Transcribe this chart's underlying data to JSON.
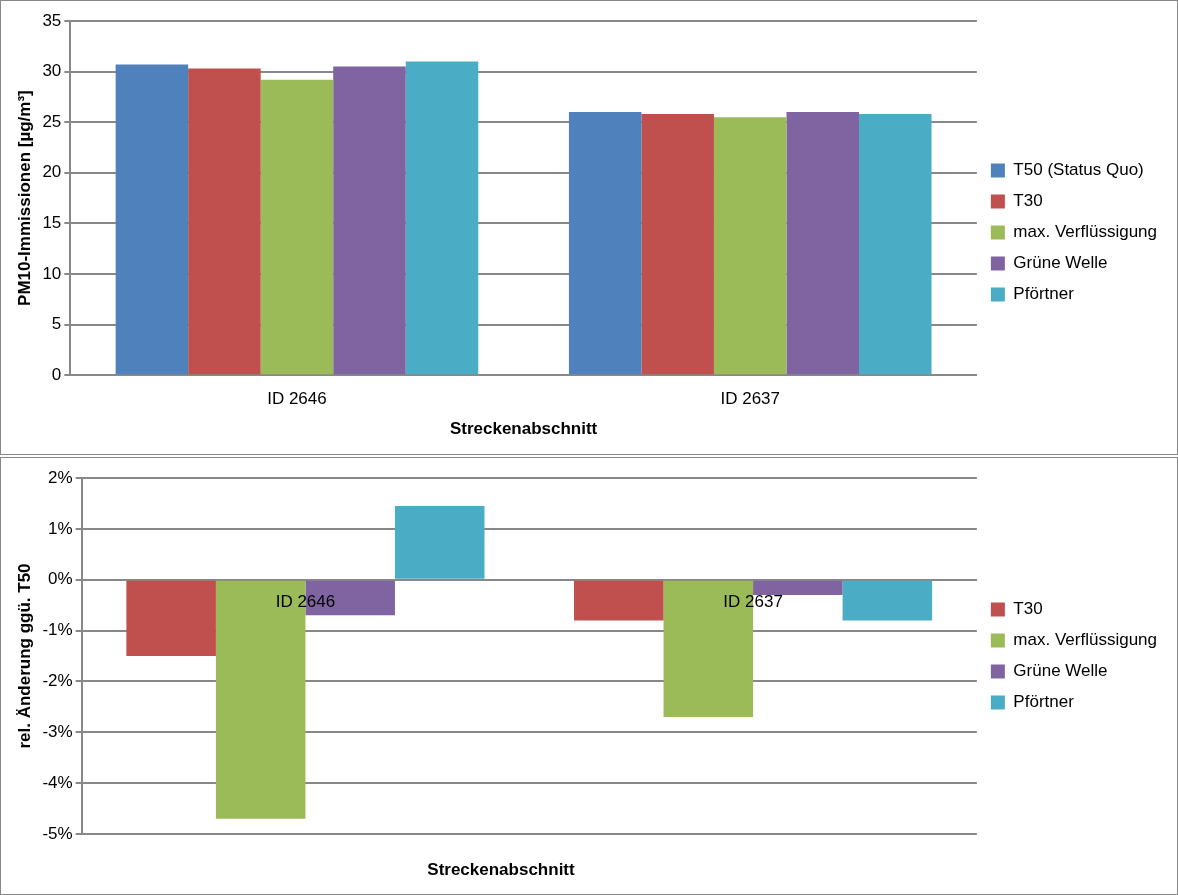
{
  "chart_data": [
    {
      "type": "bar",
      "xlabel": "Streckenabschnitt",
      "ylabel": "PM10-Immissionen [µg/m³]",
      "categories": [
        "ID 2646",
        "ID 2637"
      ],
      "series": [
        {
          "name": "T50 (Status Quo)",
          "color": "#4f81bd",
          "values": [
            30.7,
            26.0
          ]
        },
        {
          "name": "T30",
          "color": "#c0504d",
          "values": [
            30.3,
            25.8
          ]
        },
        {
          "name": "max. Verflüssigung",
          "color": "#9bbb59",
          "values": [
            29.2,
            25.5
          ]
        },
        {
          "name": "Grüne Welle",
          "color": "#8064a2",
          "values": [
            30.5,
            26.0
          ]
        },
        {
          "name": "Pförtner",
          "color": "#4bacc6",
          "values": [
            31.0,
            25.8
          ]
        }
      ],
      "ylim": [
        0,
        35
      ],
      "yticks": [
        0,
        5,
        10,
        15,
        20,
        25,
        30,
        35
      ],
      "grid": "y",
      "legend": "right"
    },
    {
      "type": "bar",
      "xlabel": "Streckenabschnitt",
      "ylabel": "rel. Änderung ggü. T50",
      "categories": [
        "ID 2646",
        "ID 2637"
      ],
      "series": [
        {
          "name": "T30",
          "color": "#c0504d",
          "values": [
            -1.5,
            -0.8
          ]
        },
        {
          "name": "max. Verflüssigung",
          "color": "#9bbb59",
          "values": [
            -4.7,
            -2.7
          ]
        },
        {
          "name": "Grüne Welle",
          "color": "#8064a2",
          "values": [
            -0.7,
            -0.3
          ]
        },
        {
          "name": "Pförtner",
          "color": "#4bacc6",
          "values": [
            1.45,
            -0.8
          ]
        }
      ],
      "ylim": [
        -5,
        2
      ],
      "yticks": [
        {
          "value": -5,
          "label": "-5%"
        },
        {
          "value": -4,
          "label": "-4%"
        },
        {
          "value": -3,
          "label": "-3%"
        },
        {
          "value": -2,
          "label": "-2%"
        },
        {
          "value": -1,
          "label": "-1%"
        },
        {
          "value": 0,
          "label": "0%"
        },
        {
          "value": 1,
          "label": "1%"
        },
        {
          "value": 2,
          "label": "2%"
        }
      ],
      "grid": "y",
      "legend": "right"
    }
  ]
}
